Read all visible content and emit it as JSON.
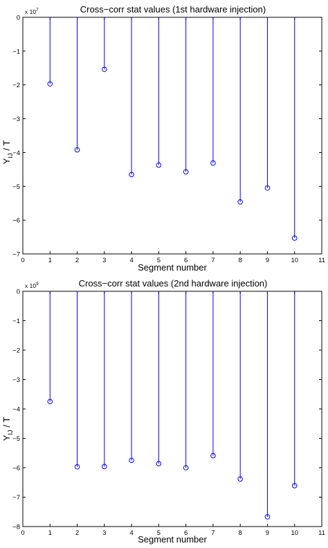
{
  "chart_data": [
    {
      "type": "stem",
      "title": "Cross−corr stat values (1st hardware injection)",
      "xlabel": "Segment number",
      "ylabel": {
        "base": "Y",
        "subscript": "IJ",
        "suffix": " / T"
      },
      "y_multiplier": {
        "base": "x 10",
        "exponent": "7"
      },
      "xlim": [
        0,
        11
      ],
      "ylim": [
        -7,
        0
      ],
      "xticks": [
        0,
        1,
        2,
        3,
        4,
        5,
        6,
        7,
        8,
        9,
        10,
        11
      ],
      "yticks": [
        0,
        -1,
        -2,
        -3,
        -4,
        -5,
        -6,
        -7
      ],
      "ytick_labels": [
        "0",
        "−1",
        "−2",
        "−3",
        "−4",
        "−5",
        "−6",
        "−7"
      ],
      "x": [
        1,
        2,
        3,
        4,
        5,
        6,
        7,
        8,
        9,
        10
      ],
      "y": [
        -1.97,
        -3.92,
        -1.54,
        -4.65,
        -4.37,
        -4.57,
        -4.31,
        -5.46,
        -5.05,
        -6.53
      ],
      "color": "#0000ff",
      "marker": "circle"
    },
    {
      "type": "stem",
      "title": "Cross−corr stat values (2nd hardware injection)",
      "xlabel": "Segment number",
      "ylabel": {
        "base": "Y",
        "subscript": "IJ",
        "suffix": " / T"
      },
      "y_multiplier": {
        "base": "x 10",
        "exponent": "9"
      },
      "xlim": [
        0,
        11
      ],
      "ylim": [
        -8,
        0
      ],
      "xticks": [
        0,
        1,
        2,
        3,
        4,
        5,
        6,
        7,
        8,
        9,
        10,
        11
      ],
      "yticks": [
        0,
        -1,
        -2,
        -3,
        -4,
        -5,
        -6,
        -7,
        -8
      ],
      "ytick_labels": [
        "0",
        "−1",
        "−2",
        "−3",
        "−4",
        "−5",
        "−6",
        "−7",
        "−8"
      ],
      "x": [
        1,
        2,
        3,
        4,
        5,
        6,
        7,
        8,
        9,
        10
      ],
      "y": [
        -3.75,
        -5.97,
        -5.96,
        -5.75,
        -5.86,
        -6.0,
        -5.59,
        -6.38,
        -7.67,
        -6.61
      ],
      "color": "#0000ff",
      "marker": "circle"
    }
  ]
}
